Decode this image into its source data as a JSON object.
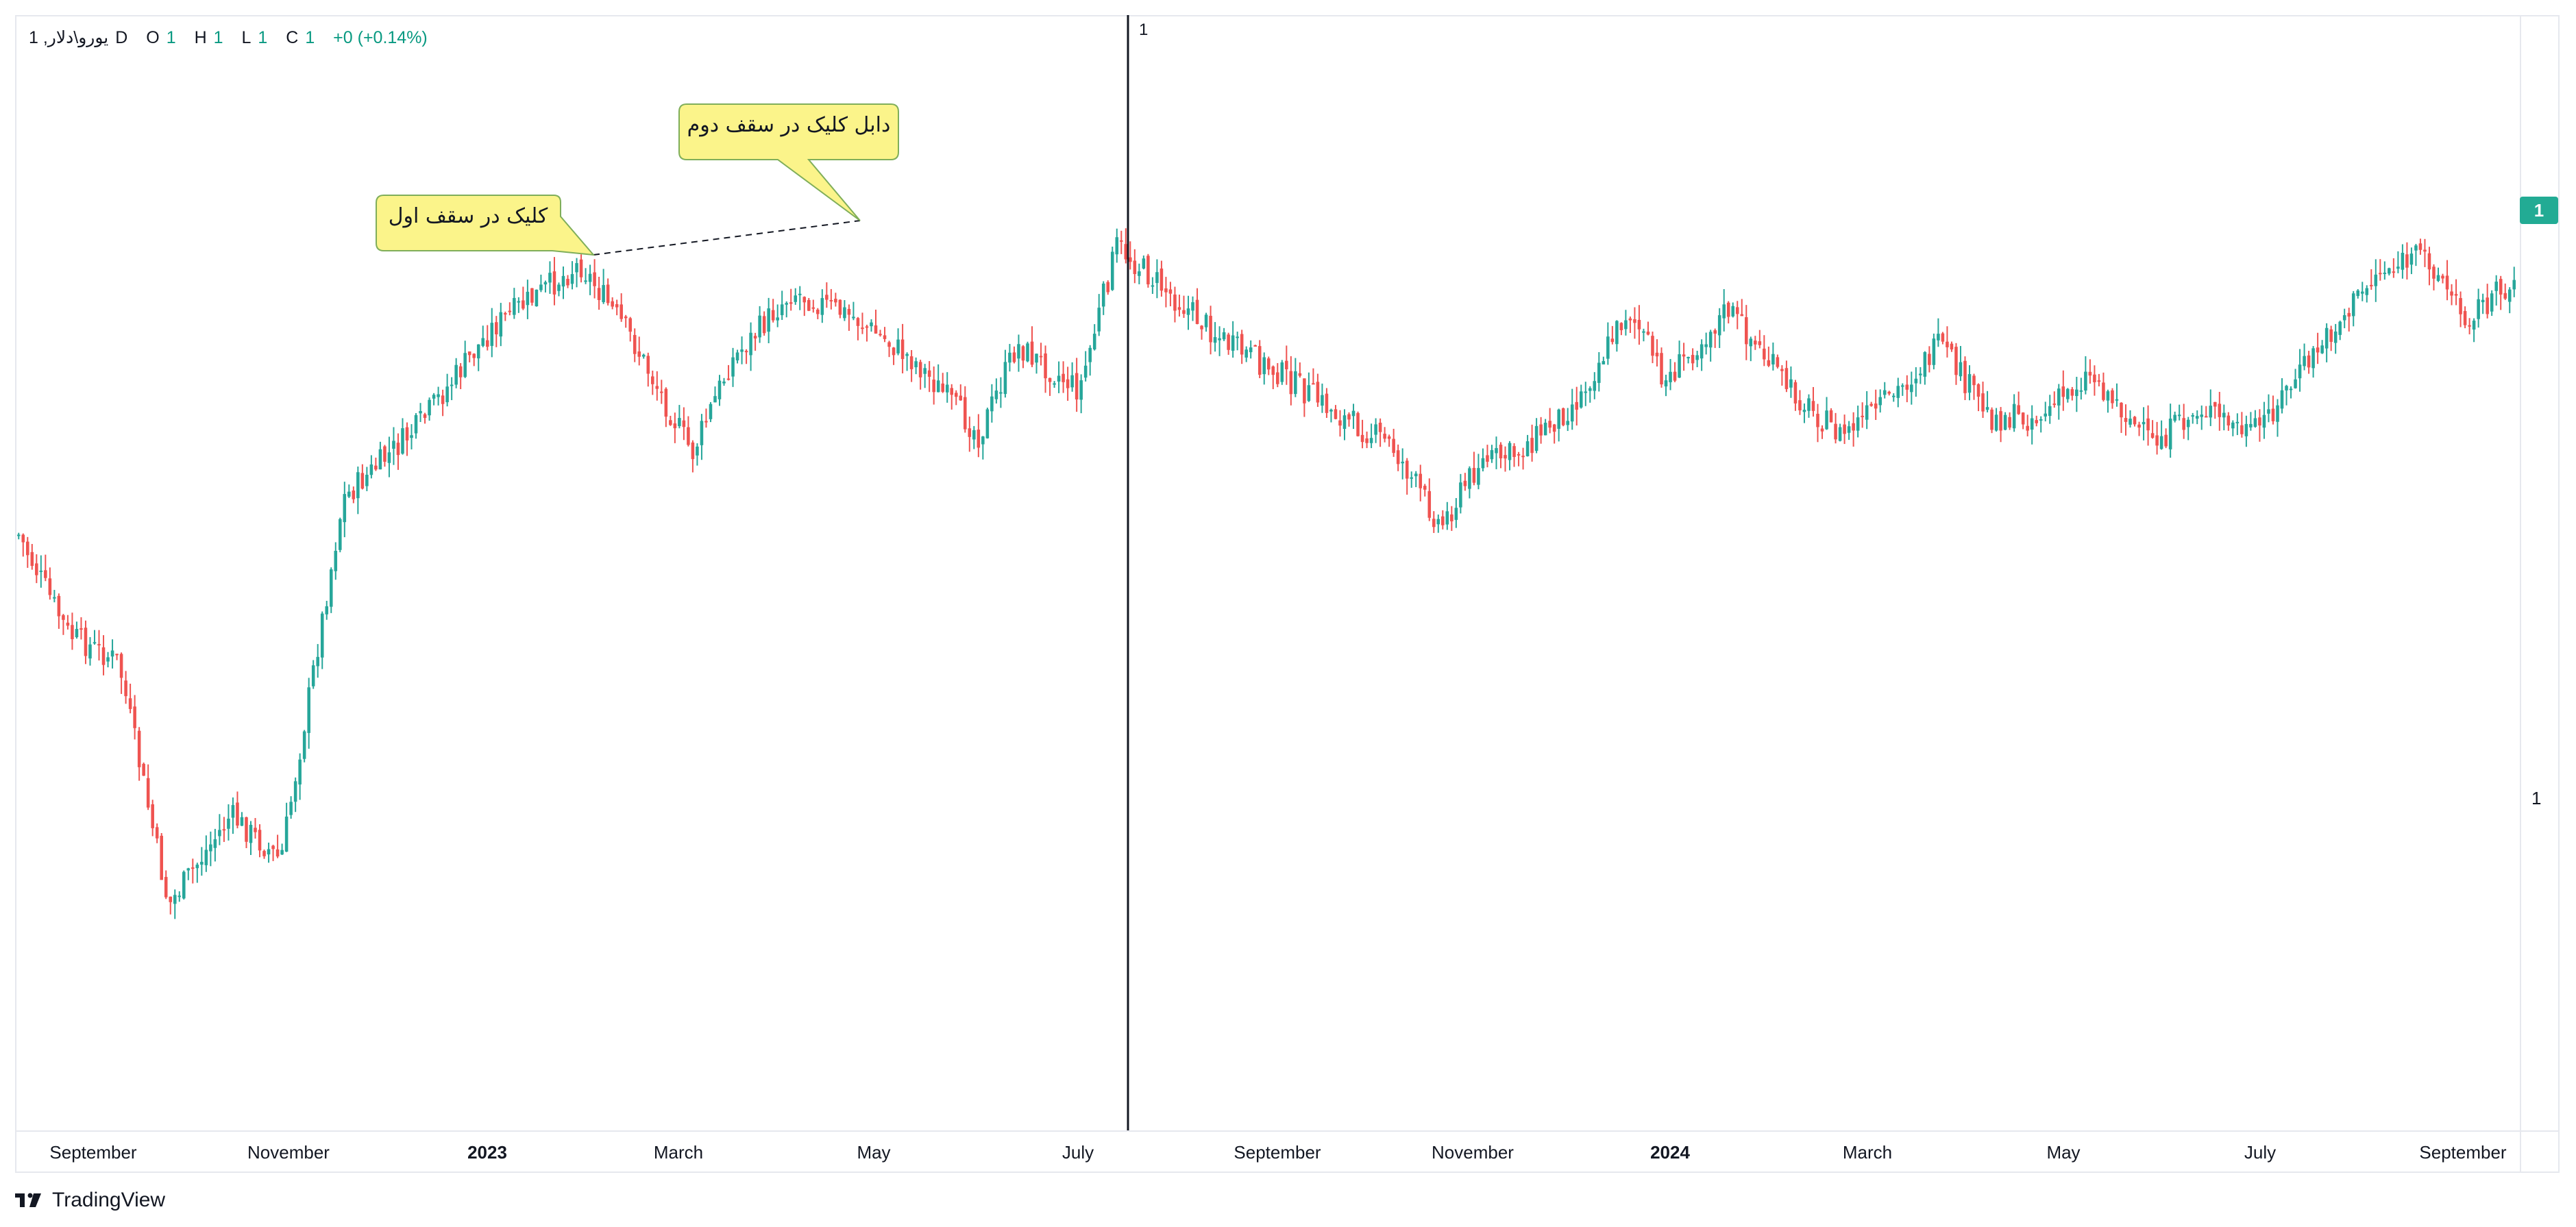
{
  "legend": {
    "symbol": "1 ,یورو\\دلار",
    "interval": "D",
    "o_key": "O",
    "o_val": "1",
    "h_key": "H",
    "h_val": "1",
    "l_key": "L",
    "l_val": "1",
    "c_key": "C",
    "c_val": "1",
    "change": "+0 (+0.14%)"
  },
  "price_axis": {
    "tag": "1",
    "value": "1"
  },
  "crosshair": {
    "label": "1"
  },
  "callouts": [
    {
      "text": "کلیک در سقف اول"
    },
    {
      "text": "دابل کلیک در سقف دوم"
    }
  ],
  "branding": {
    "name": "TradingView"
  },
  "colors": {
    "up": "#26a69a",
    "down": "#ef5350",
    "price_tag": "#22ab94",
    "callout_bg": "#fbf48a",
    "callout_border": "#7fae5a"
  },
  "chart_data": {
    "type": "candlestick",
    "x_axis_labels": [
      "September",
      "November",
      "2023",
      "March",
      "May",
      "July",
      "September",
      "November",
      "2024",
      "March",
      "May",
      "July",
      "September"
    ],
    "bold_labels": [
      "2023",
      "2024"
    ],
    "price_path": [
      [
        0.0,
        0.44
      ],
      [
        0.02,
        0.55
      ],
      [
        0.04,
        0.58
      ],
      [
        0.06,
        0.85
      ],
      [
        0.085,
        0.75
      ],
      [
        0.105,
        0.8
      ],
      [
        0.13,
        0.4
      ],
      [
        0.16,
        0.32
      ],
      [
        0.19,
        0.21
      ],
      [
        0.225,
        0.14
      ],
      [
        0.245,
        0.22
      ],
      [
        0.27,
        0.35
      ],
      [
        0.285,
        0.25
      ],
      [
        0.31,
        0.17
      ],
      [
        0.335,
        0.2
      ],
      [
        0.36,
        0.25
      ],
      [
        0.385,
        0.33
      ],
      [
        0.4,
        0.23
      ],
      [
        0.425,
        0.28
      ],
      [
        0.44,
        0.12
      ],
      [
        0.46,
        0.17
      ],
      [
        0.485,
        0.23
      ],
      [
        0.505,
        0.26
      ],
      [
        0.53,
        0.31
      ],
      [
        0.55,
        0.34
      ],
      [
        0.57,
        0.43
      ],
      [
        0.585,
        0.36
      ],
      [
        0.6,
        0.35
      ],
      [
        0.625,
        0.29
      ],
      [
        0.645,
        0.19
      ],
      [
        0.66,
        0.27
      ],
      [
        0.685,
        0.19
      ],
      [
        0.71,
        0.28
      ],
      [
        0.73,
        0.33
      ],
      [
        0.75,
        0.29
      ],
      [
        0.77,
        0.23
      ],
      [
        0.79,
        0.31
      ],
      [
        0.81,
        0.31
      ],
      [
        0.83,
        0.26
      ],
      [
        0.855,
        0.34
      ],
      [
        0.875,
        0.3
      ],
      [
        0.895,
        0.33
      ],
      [
        0.92,
        0.24
      ],
      [
        0.945,
        0.15
      ],
      [
        0.965,
        0.13
      ],
      [
        0.98,
        0.2
      ],
      [
        1.0,
        0.16
      ]
    ]
  },
  "annotations": {
    "dashed_trendline": true,
    "vertical_line": true
  }
}
